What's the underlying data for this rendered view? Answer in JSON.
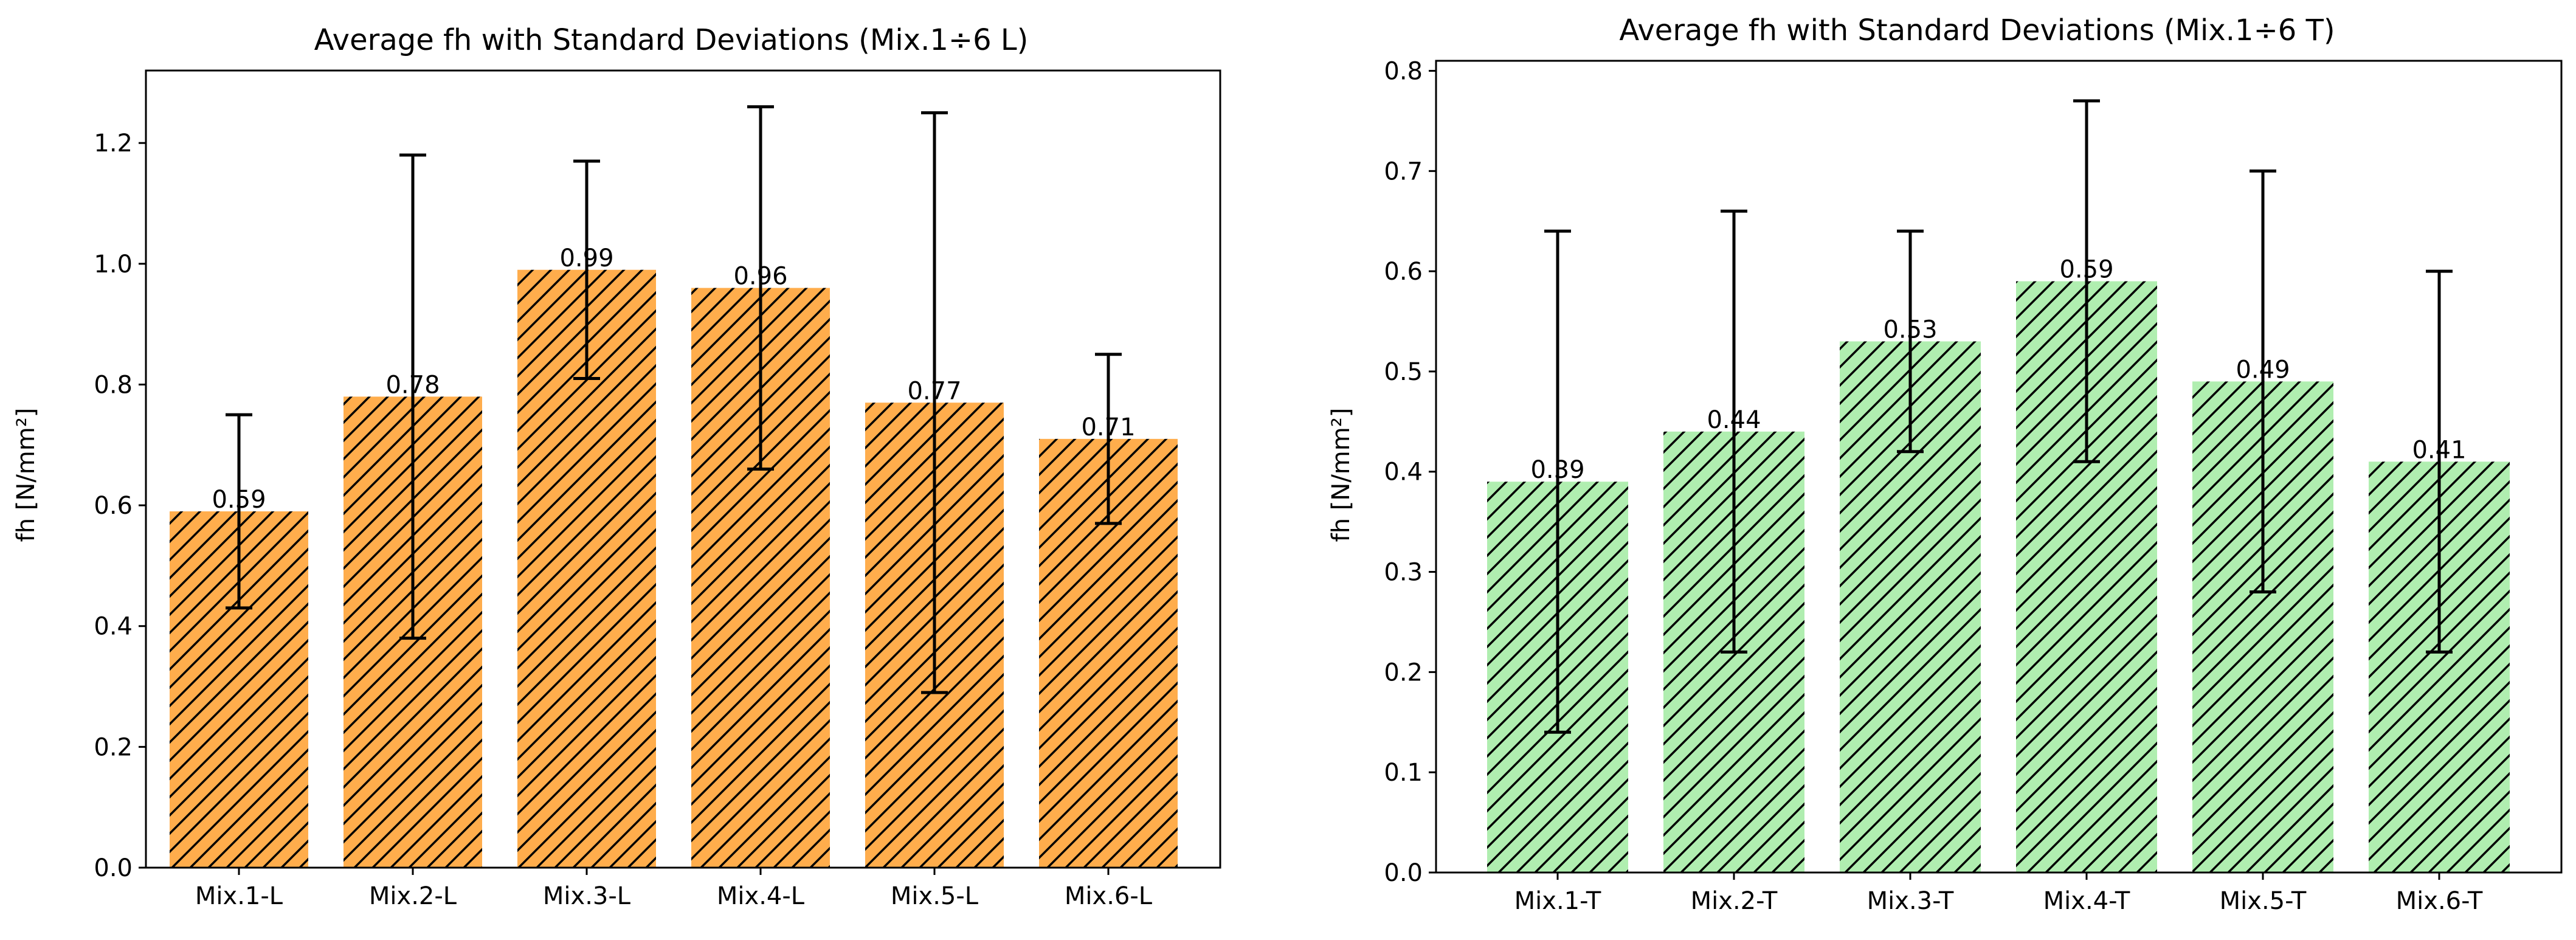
{
  "chart_data": [
    {
      "type": "bar",
      "title": "Average fh with Standard Deviations (Mix.1÷6 L)",
      "xlabel": "",
      "ylabel": "fh [N/mm²]",
      "categories": [
        "Mix.1-L",
        "Mix.2-L",
        "Mix.3-L",
        "Mix.4-L",
        "Mix.5-L",
        "Mix.6-L"
      ],
      "values": [
        0.59,
        0.78,
        0.99,
        0.96,
        0.77,
        0.71
      ],
      "value_labels": [
        "0.59",
        "0.78",
        "0.99",
        "0.96",
        "0.77",
        "0.71"
      ],
      "errors": [
        0.16,
        0.4,
        0.18,
        0.3,
        0.48,
        0.14
      ],
      "ylim": [
        0,
        1.32
      ],
      "yticks": [
        0.0,
        0.2,
        0.4,
        0.6,
        0.8,
        1.0,
        1.2
      ],
      "ytick_labels": [
        "0.0",
        "0.2",
        "0.4",
        "0.6",
        "0.8",
        "1.0",
        "1.2"
      ],
      "bar_color": "#FFAD4C",
      "hatch": "diagonal",
      "grid": false
    },
    {
      "type": "bar",
      "title": "Average fh with Standard Deviations (Mix.1÷6 T)",
      "xlabel": "",
      "ylabel": "fh [N/mm²]",
      "categories": [
        "Mix.1-T",
        "Mix.2-T",
        "Mix.3-T",
        "Mix.4-T",
        "Mix.5-T",
        "Mix.6-T"
      ],
      "values": [
        0.39,
        0.44,
        0.53,
        0.59,
        0.49,
        0.41
      ],
      "value_labels": [
        "0.39",
        "0.44",
        "0.53",
        "0.59",
        "0.49",
        "0.41"
      ],
      "errors": [
        0.25,
        0.22,
        0.11,
        0.18,
        0.21,
        0.19
      ],
      "ylim": [
        0,
        0.81
      ],
      "yticks": [
        0.0,
        0.1,
        0.2,
        0.3,
        0.4,
        0.5,
        0.6,
        0.7,
        0.8
      ],
      "ytick_labels": [
        "0.0",
        "0.1",
        "0.2",
        "0.3",
        "0.4",
        "0.5",
        "0.6",
        "0.7",
        "0.8"
      ],
      "bar_color": "#B0EEB0",
      "hatch": "diagonal",
      "grid": false
    }
  ]
}
